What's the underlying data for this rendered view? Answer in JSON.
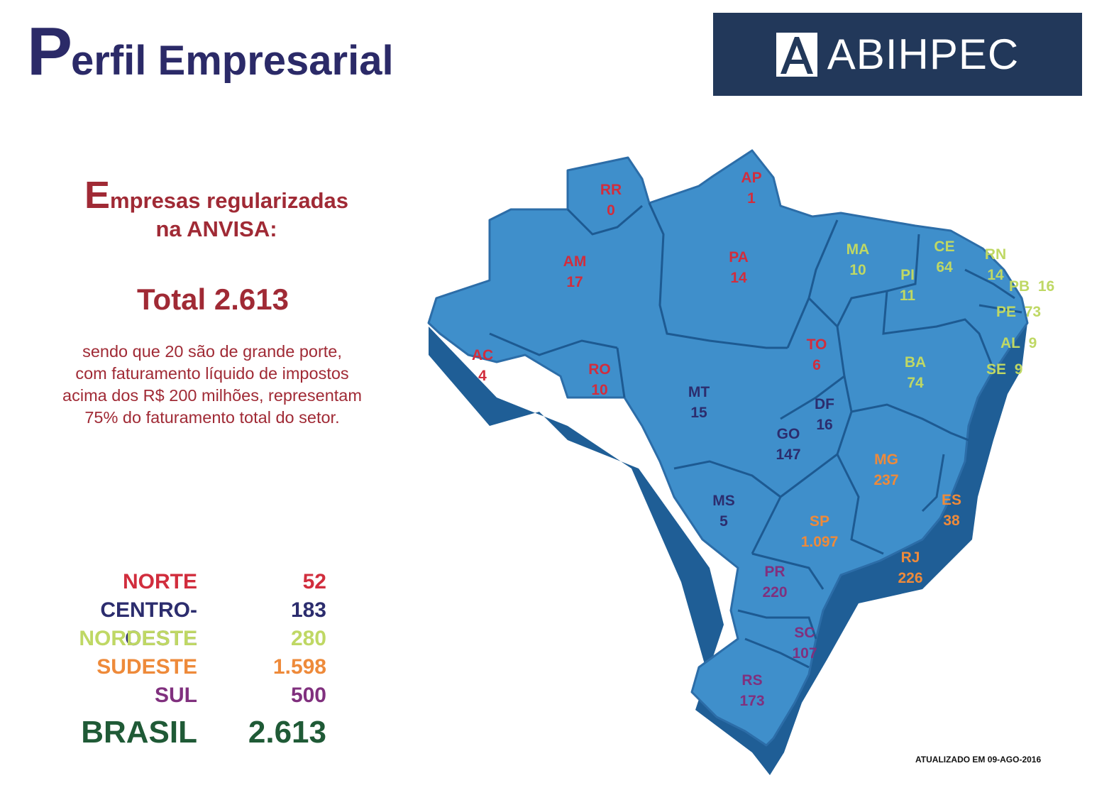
{
  "title": {
    "first_letter": "P",
    "rest": "erfil Empresarial"
  },
  "logo": {
    "text": "ABIHPEC"
  },
  "heading": {
    "first_letter": "E",
    "line1_rest": "mpresas regularizadas",
    "line2": "na ANVISA:"
  },
  "total": "Total 2.613",
  "description": {
    "line1": "sendo que 20 são de grande porte,",
    "line2": "com faturamento líquido de impostos",
    "line3": "acima dos R$ 200 milhões, representam",
    "line4": "75% do faturamento total do setor."
  },
  "colors": {
    "norte": "#d12d3d",
    "centro_oeste": "#2c2d6e",
    "nordeste": "#bfd864",
    "sudeste": "#ee8a3a",
    "sul": "#80307e",
    "brasil": "#1f5a36",
    "map_fill": "#3f8fcb",
    "map_side": "#1f5e96",
    "title": "#2b2a68",
    "accent": "#a02a35",
    "logo_bg": "#22385a"
  },
  "regions": [
    {
      "name": "NORTE",
      "value": "52",
      "color_key": "norte"
    },
    {
      "name": "CENTRO-OESTE",
      "value": "183",
      "color_key": "centro_oeste"
    },
    {
      "name": "NORDESTE",
      "value": "280",
      "color_key": "nordeste"
    },
    {
      "name": "SUDESTE",
      "value": "1.598",
      "color_key": "sudeste"
    },
    {
      "name": "SUL",
      "value": "500",
      "color_key": "sul"
    }
  ],
  "brasil": {
    "name": "BRASIL",
    "value": "2.613"
  },
  "states": [
    {
      "code": "RR",
      "value": "0",
      "region": "norte"
    },
    {
      "code": "AP",
      "value": "1",
      "region": "norte"
    },
    {
      "code": "AM",
      "value": "17",
      "region": "norte"
    },
    {
      "code": "PA",
      "value": "14",
      "region": "norte"
    },
    {
      "code": "AC",
      "value": "4",
      "region": "norte"
    },
    {
      "code": "RO",
      "value": "10",
      "region": "norte"
    },
    {
      "code": "TO",
      "value": "6",
      "region": "norte"
    },
    {
      "code": "MA",
      "value": "10",
      "region": "nordeste"
    },
    {
      "code": "PI",
      "value": "11",
      "region": "nordeste"
    },
    {
      "code": "CE",
      "value": "64",
      "region": "nordeste"
    },
    {
      "code": "RN",
      "value": "14",
      "region": "nordeste"
    },
    {
      "code": "PB",
      "value": "16",
      "region": "nordeste"
    },
    {
      "code": "PE",
      "value": "73",
      "region": "nordeste"
    },
    {
      "code": "AL",
      "value": "9",
      "region": "nordeste"
    },
    {
      "code": "SE",
      "value": "9",
      "region": "nordeste"
    },
    {
      "code": "BA",
      "value": "74",
      "region": "nordeste"
    },
    {
      "code": "MT",
      "value": "15",
      "region": "centro_oeste"
    },
    {
      "code": "DF",
      "value": "16",
      "region": "centro_oeste"
    },
    {
      "code": "GO",
      "value": "147",
      "region": "centro_oeste"
    },
    {
      "code": "MS",
      "value": "5",
      "region": "centro_oeste"
    },
    {
      "code": "MG",
      "value": "237",
      "region": "sudeste"
    },
    {
      "code": "ES",
      "value": "38",
      "region": "sudeste"
    },
    {
      "code": "SP",
      "value": "1.097",
      "region": "sudeste"
    },
    {
      "code": "RJ",
      "value": "226",
      "region": "sudeste"
    },
    {
      "code": "PR",
      "value": "220",
      "region": "sul"
    },
    {
      "code": "SC",
      "value": "107",
      "region": "sul"
    },
    {
      "code": "RS",
      "value": "173",
      "region": "sul"
    }
  ],
  "updated": "ATUALIZADO EM 09-AGO-2016"
}
